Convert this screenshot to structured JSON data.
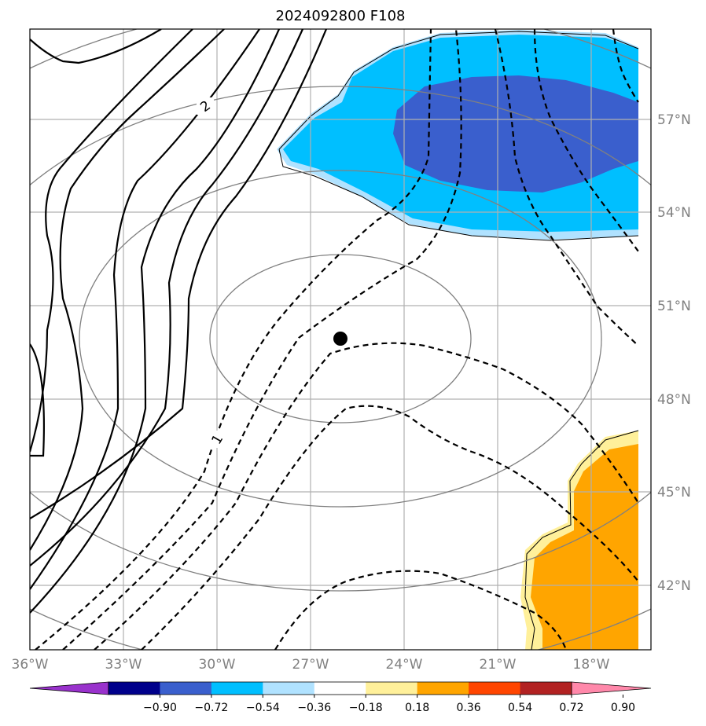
{
  "title": "2024092800 F108",
  "map": {
    "lon_ticks": [
      "36°W",
      "33°W",
      "30°W",
      "27°W",
      "24°W",
      "21°W",
      "18°W"
    ],
    "lat_ticks": [
      "57°N",
      "54°N",
      "51°N",
      "48°N",
      "45°N",
      "42°N"
    ],
    "contour_labels": [
      "2",
      "1"
    ],
    "center_marker": "storm-center-dot"
  },
  "colorbar": {
    "labels": [
      "−0.90",
      "−0.72",
      "−0.54",
      "−0.36",
      "−0.18",
      "0.18",
      "0.36",
      "0.54",
      "0.72",
      "0.90"
    ],
    "colors": [
      "#9932cc",
      "#00008b",
      "#3a5fcd",
      "#00bfff",
      "#b0e2ff",
      "#ffffff",
      "#fff09a",
      "#ffa500",
      "#ff4500",
      "#b22222",
      "#ff88aa"
    ]
  },
  "colors": {
    "fill_neg_light": "#b0e2ff",
    "fill_neg_mid": "#00bfff",
    "fill_neg_dark": "#3a5fcd",
    "fill_pos_light": "#fff09a",
    "fill_pos_mid": "#ffa500",
    "grid": "#b0b0b0",
    "ring": "#808080"
  }
}
